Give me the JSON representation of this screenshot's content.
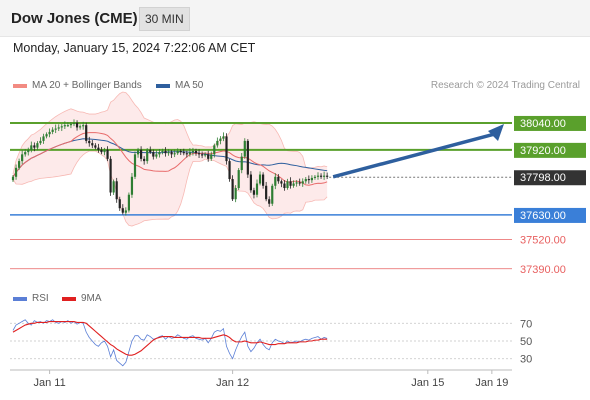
{
  "header": {
    "title": "Dow Jones (CME)",
    "timeframe": "30 MIN"
  },
  "timestamp": "Monday, January 15, 2024 7:22:06 AM CET",
  "legend_main": [
    {
      "label": "MA 20 + Bollinger Bands",
      "color": "#f28b82"
    },
    {
      "label": "MA 50",
      "color": "#2e5f9e"
    }
  ],
  "credit": "Research © 2024 Trading Central",
  "legend_rsi": [
    {
      "label": "RSI",
      "color": "#5b7fd6"
    },
    {
      "label": "9MA",
      "color": "#e02020"
    }
  ],
  "colors": {
    "resistance": "#5aa02c",
    "pivot": "#3a7fd8",
    "support": "#e86060",
    "price": "#333333",
    "arrow": "#2e5f9e",
    "bull": "#2e7d32",
    "bear": "#222222"
  },
  "chart_data": [
    {
      "type": "candlestick",
      "ylim": [
        37340,
        38120
      ],
      "levels": [
        {
          "label": "38040.00",
          "value": 38040,
          "kind": "resistance"
        },
        {
          "label": "37920.00",
          "value": 37920,
          "kind": "resistance"
        },
        {
          "label": "37798.00",
          "value": 37798,
          "kind": "price"
        },
        {
          "label": "37630.00",
          "value": 37630,
          "kind": "pivot"
        },
        {
          "label": "37520.00",
          "value": 37520,
          "kind": "support"
        },
        {
          "label": "37390.00",
          "value": 37390,
          "kind": "support"
        }
      ],
      "forecast_arrow": {
        "from": 37800,
        "to": 38040
      },
      "closes": [
        37800,
        37840,
        37870,
        37900,
        37910,
        37920,
        37940,
        37930,
        37950,
        37960,
        37980,
        37990,
        38000,
        38010,
        38015,
        38020,
        38025,
        38030,
        38030,
        38035,
        38040,
        38020,
        38025,
        38030,
        37960,
        37950,
        37940,
        37930,
        37920,
        37910,
        37920,
        37880,
        37730,
        37780,
        37700,
        37660,
        37640,
        37650,
        37720,
        37800,
        37900,
        37920,
        37880,
        37870,
        37920,
        37910,
        37890,
        37900,
        37910,
        37915,
        37905,
        37910,
        37900,
        37905,
        37915,
        37910,
        37905,
        37900,
        37910,
        37915,
        37905,
        37900,
        37895,
        37900,
        37880,
        37900,
        37940,
        37960,
        37970,
        37980,
        37870,
        37790,
        37700,
        37750,
        37830,
        37890,
        37960,
        37810,
        37740,
        37720,
        37770,
        37810,
        37760,
        37700,
        37680,
        37760,
        37800,
        37780,
        37770,
        37750,
        37780,
        37760,
        37770,
        37775,
        37770,
        37780,
        37790,
        37785,
        37795,
        37800,
        37805,
        37800,
        37805,
        37800
      ],
      "x_ticks": [
        {
          "label": "Jan 11",
          "index": 12
        },
        {
          "label": "Jan 12",
          "index": 72
        },
        {
          "label": "Jan 15",
          "index": 136
        },
        {
          "label": "Jan 19",
          "index": 157
        }
      ]
    },
    {
      "type": "line",
      "name": "rsi_panel",
      "ylim": [
        15,
        85
      ],
      "y_ticks": [
        "70",
        "50",
        "30"
      ],
      "y_tick_values": [
        70,
        50,
        30
      ],
      "series": [
        {
          "name": "RSI",
          "values": [
            62,
            68,
            70,
            72,
            74,
            70,
            68,
            73,
            71,
            72,
            70,
            73,
            72,
            74,
            71,
            70,
            72,
            71,
            73,
            70,
            72,
            69,
            71,
            70,
            60,
            54,
            50,
            46,
            44,
            48,
            50,
            44,
            32,
            40,
            28,
            25,
            22,
            26,
            38,
            50,
            56,
            56,
            52,
            51,
            57,
            55,
            52,
            53,
            55,
            56,
            52,
            55,
            53,
            54,
            57,
            55,
            53,
            52,
            55,
            56,
            53,
            52,
            51,
            53,
            48,
            53,
            60,
            62,
            61,
            64,
            44,
            36,
            30,
            40,
            48,
            55,
            60,
            44,
            38,
            42,
            48,
            52,
            46,
            42,
            40,
            48,
            52,
            50,
            49,
            47,
            50,
            48,
            49,
            50,
            49,
            51,
            52,
            51,
            53,
            54,
            55,
            52,
            54,
            53
          ]
        },
        {
          "name": "9MA",
          "values": [
            60,
            62,
            64,
            66,
            68,
            69,
            70,
            70,
            71,
            71,
            71,
            71,
            72,
            72,
            72,
            72,
            72,
            72,
            72,
            72,
            72,
            71,
            71,
            71,
            70,
            67,
            64,
            61,
            58,
            55,
            52,
            49,
            46,
            44,
            41,
            39,
            37,
            35,
            34,
            34,
            35,
            37,
            39,
            42,
            45,
            48,
            51,
            53,
            54,
            55,
            55,
            55,
            55,
            54,
            54,
            54,
            54,
            54,
            54,
            54,
            54,
            54,
            53,
            53,
            53,
            53,
            54,
            55,
            56,
            57,
            56,
            54,
            51,
            49,
            49,
            49,
            50,
            49,
            48,
            48,
            48,
            49,
            48,
            47,
            46,
            46,
            46,
            47,
            47,
            47,
            48,
            48,
            48,
            48,
            49,
            49,
            49,
            50,
            50,
            51,
            51,
            52,
            52,
            52
          ]
        }
      ]
    }
  ]
}
